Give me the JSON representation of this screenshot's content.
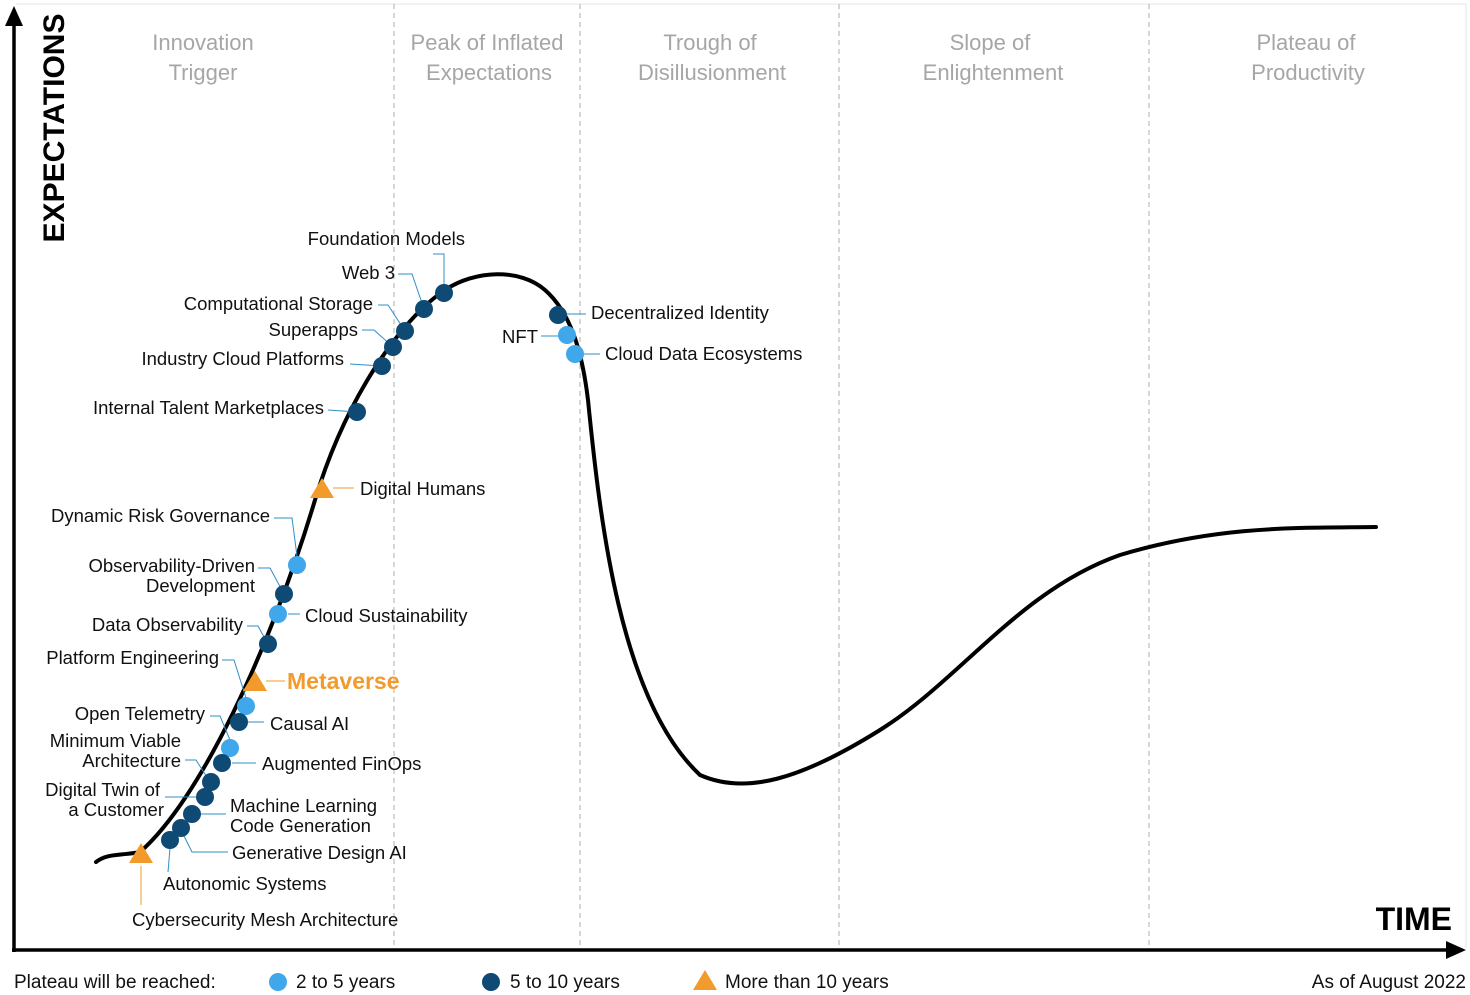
{
  "phases": [
    {
      "line1": "Innovation",
      "line2": "Trigger"
    },
    {
      "line1": "Peak of Inflated",
      "line2": "Expectations"
    },
    {
      "line1": "Trough of",
      "line2": "Disillusionment"
    },
    {
      "line1": "Slope of",
      "line2": "Enlightenment"
    },
    {
      "line1": "Plateau of",
      "line2": "Productivity"
    }
  ],
  "axes": {
    "y_title": "EXPECTATIONS",
    "x_title": "TIME"
  },
  "legend": {
    "intro": "Plateau will be reached:",
    "items": [
      {
        "label": "2 to 5 years",
        "marker": "circle",
        "color": "#3fa7ea"
      },
      {
        "label": "5 to 10 years",
        "marker": "circle",
        "color": "#0e4a73"
      },
      {
        "label": "More than 10 years",
        "marker": "triangle",
        "color": "#f39a2c"
      }
    ]
  },
  "as_of": "As of August 2022",
  "colors": {
    "light": "#3fa7ea",
    "dark": "#0e4a73",
    "orange": "#f39a2c",
    "curve": "#000000",
    "leader": "#2f8fc7"
  },
  "technologies": [
    {
      "name": "Foundation Models",
      "plateau": "5 to 10 years"
    },
    {
      "name": "Web 3",
      "plateau": "5 to 10 years"
    },
    {
      "name": "Computational Storage",
      "plateau": "5 to 10 years"
    },
    {
      "name": "Superapps",
      "plateau": "5 to 10 years"
    },
    {
      "name": "Industry Cloud Platforms",
      "plateau": "5 to 10 years"
    },
    {
      "name": "Internal Talent Marketplaces",
      "plateau": "5 to 10 years"
    },
    {
      "name": "Digital Humans",
      "plateau": "More than 10 years"
    },
    {
      "name": "Dynamic Risk Governance",
      "plateau": "2 to 5 years"
    },
    {
      "name": "Observability-Driven Development",
      "lines": [
        "Observability-Driven",
        "Development"
      ],
      "plateau": "5 to 10 years"
    },
    {
      "name": "Cloud Sustainability",
      "plateau": "2 to 5 years"
    },
    {
      "name": "Data Observability",
      "plateau": "5 to 10 years"
    },
    {
      "name": "Platform Engineering",
      "plateau": "2 to 5 years"
    },
    {
      "name": "Metaverse",
      "plateau": "More than 10 years"
    },
    {
      "name": "Open Telemetry",
      "plateau": "2 to 5 years"
    },
    {
      "name": "Causal AI",
      "plateau": "5 to 10 years"
    },
    {
      "name": "Minimum Viable Architecture",
      "lines": [
        "Minimum Viable",
        "Architecture"
      ],
      "plateau": "2 to 5 years"
    },
    {
      "name": "Augmented FinOps",
      "plateau": "5 to 10 years"
    },
    {
      "name": "Digital Twin of a Customer",
      "lines": [
        "Digital Twin of",
        "a Customer"
      ],
      "plateau": "5 to 10 years"
    },
    {
      "name": "Machine Learning Code Generation",
      "lines": [
        "Machine Learning",
        "Code Generation"
      ],
      "plateau": "5 to 10 years"
    },
    {
      "name": "Generative Design AI",
      "plateau": "5 to 10 years"
    },
    {
      "name": "Autonomic Systems",
      "plateau": "5 to 10 years"
    },
    {
      "name": "Cybersecurity Mesh Architecture",
      "plateau": "More than 10 years"
    },
    {
      "name": "Decentralized Identity",
      "plateau": "5 to 10 years"
    },
    {
      "name": "NFT",
      "plateau": "2 to 5 years"
    },
    {
      "name": "Cloud Data Ecosystems",
      "plateau": "2 to 5 years"
    }
  ]
}
